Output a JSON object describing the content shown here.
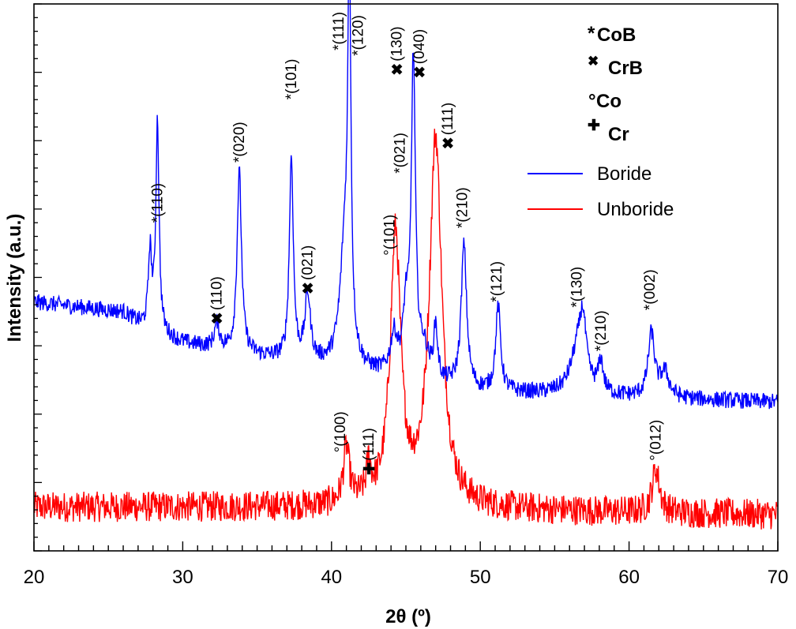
{
  "chart_data": {
    "type": "line",
    "title": "",
    "xlabel": "2θ (º)",
    "ylabel": "Intensity (a.u.)",
    "xlim": [
      20,
      70
    ],
    "ylim": [
      0,
      100
    ],
    "x_ticks": [
      20,
      30,
      40,
      50,
      60,
      70
    ],
    "x_tick_labels": [
      "20",
      "30",
      "40",
      "50",
      "60",
      "70"
    ],
    "y_tick_labels": [],
    "legend": {
      "position": "top-right",
      "entries": [
        {
          "name": "Boride",
          "color": "#0000ff"
        },
        {
          "name": "Unboride",
          "color": "#ff0000"
        }
      ]
    },
    "phase_key": [
      {
        "symbol": "*",
        "name": "CoB"
      },
      {
        "symbol": "✖",
        "name": "CrB"
      },
      {
        "symbol": "°",
        "name": "Co"
      },
      {
        "symbol": "✚",
        "name": "Cr"
      }
    ],
    "series": [
      {
        "name": "Boride",
        "color": "#0000ff",
        "baseline": [
          [
            20,
            45.5
          ],
          [
            26,
            43.6
          ],
          [
            27.5,
            40.5
          ],
          [
            30,
            38.0
          ],
          [
            35,
            35.5
          ],
          [
            40,
            33.5
          ],
          [
            50,
            29.0
          ],
          [
            60,
            28.0
          ],
          [
            70,
            27.2
          ]
        ],
        "peaks": [
          {
            "x": 27.8,
            "h": 14.0,
            "w": 0.14
          },
          {
            "x": 28.3,
            "h": 38.5,
            "w": 0.13
          },
          {
            "x": 32.3,
            "h": 4.5,
            "w": 0.2
          },
          {
            "x": 33.8,
            "h": 33.0,
            "w": 0.18
          },
          {
            "x": 37.3,
            "h": 37.0,
            "w": 0.16
          },
          {
            "x": 38.4,
            "h": 12.0,
            "w": 0.22
          },
          {
            "x": 40.9,
            "h": 22.0,
            "w": 0.38
          },
          {
            "x": 41.2,
            "h": 68.5,
            "w": 0.12
          },
          {
            "x": 44.2,
            "h": 7.0,
            "w": 0.28
          },
          {
            "x": 45.0,
            "h": 11.0,
            "w": 0.22
          },
          {
            "x": 45.5,
            "h": 57.0,
            "w": 0.17
          },
          {
            "x": 46.2,
            "h": 5.0,
            "w": 0.4
          },
          {
            "x": 47.0,
            "h": 9.5,
            "w": 0.15
          },
          {
            "x": 48.9,
            "h": 26.0,
            "w": 0.22
          },
          {
            "x": 51.2,
            "h": 15.5,
            "w": 0.2
          },
          {
            "x": 56.6,
            "h": 9.0,
            "w": 0.6
          },
          {
            "x": 56.9,
            "h": 9.0,
            "w": 0.24
          },
          {
            "x": 58.1,
            "h": 5.5,
            "w": 0.2
          },
          {
            "x": 61.5,
            "h": 11.5,
            "w": 0.26
          },
          {
            "x": 62.4,
            "h": 4.5,
            "w": 0.35
          }
        ],
        "noise": 1.5
      },
      {
        "name": "Unboride",
        "color": "#ff0000",
        "baseline": [
          [
            20,
            8.0
          ],
          [
            40,
            8.0
          ],
          [
            44,
            8.5
          ],
          [
            50,
            7.6
          ],
          [
            60,
            7.0
          ],
          [
            70,
            6.6
          ]
        ],
        "peaks": [
          {
            "x": 41.0,
            "h": 10.0,
            "w": 0.24
          },
          {
            "x": 42.5,
            "h": 6.0,
            "w": 0.16
          },
          {
            "x": 44.3,
            "h": 48.5,
            "w": 0.42
          },
          {
            "x": 47.0,
            "h": 67.0,
            "w": 0.5
          },
          {
            "x": 61.8,
            "h": 8.0,
            "w": 0.3
          }
        ],
        "noise": 2.8
      }
    ],
    "annotations": [
      {
        "text": "*(110)",
        "x": 28.3,
        "y": 60.0
      },
      {
        "text": "(110)",
        "x": 32.3,
        "y": 44.0,
        "symbol": "✖"
      },
      {
        "text": "*(020)",
        "x": 33.8,
        "y": 71.0
      },
      {
        "text": "(021)",
        "x": 38.4,
        "y": 49.5,
        "symbol": "✖"
      },
      {
        "text": "*(101)",
        "x": 37.3,
        "y": 82.5
      },
      {
        "text": "*(111)",
        "x": 40.5,
        "y": 91.5
      },
      {
        "text": "*(120)",
        "x": 41.8,
        "y": 90.5
      },
      {
        "text": "(130)",
        "x": 44.4,
        "y": 89.5,
        "symbol": "✖"
      },
      {
        "text": "(040)",
        "x": 45.9,
        "y": 89.0,
        "symbol": "✖"
      },
      {
        "text": "*(021)",
        "x": 44.6,
        "y": 69.0
      },
      {
        "text": "°(101)",
        "x": 43.9,
        "y": 54.0
      },
      {
        "text": "(111)",
        "x": 47.8,
        "y": 76.0,
        "symbol": "✖"
      },
      {
        "text": "*(210)",
        "x": 48.8,
        "y": 59.0
      },
      {
        "text": "*(121)",
        "x": 51.1,
        "y": 45.5
      },
      {
        "text": "*(130)",
        "x": 56.5,
        "y": 44.5
      },
      {
        "text": "*(210)",
        "x": 58.1,
        "y": 36.5
      },
      {
        "text": "*(002)",
        "x": 61.4,
        "y": 44.0
      },
      {
        "text": "°(100)",
        "x": 40.6,
        "y": 18.0
      },
      {
        "text": "(111)",
        "x": 42.5,
        "y": 16.5,
        "symbol": "✚"
      },
      {
        "text": "°(012)",
        "x": 61.8,
        "y": 16.5
      }
    ]
  }
}
